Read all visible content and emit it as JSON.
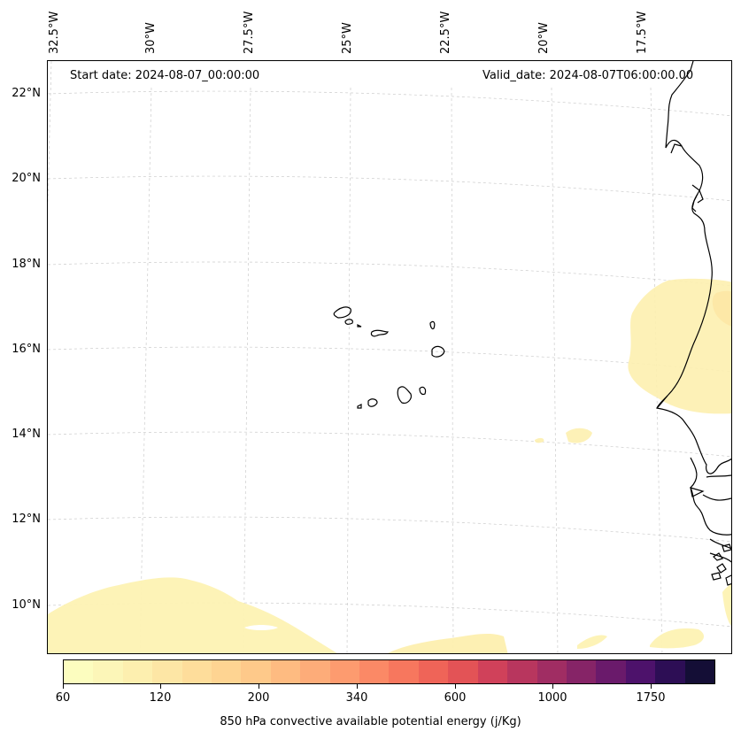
{
  "map": {
    "start_date": "Start date: 2024-08-07_00:00:00",
    "valid_date": "Valid_date: 2024-08-07T06:00:00.00",
    "longitude_labels": [
      "32.5°W",
      "30°W",
      "27.5°W",
      "25°W",
      "22.5°W",
      "20°W",
      "17.5°W"
    ],
    "latitude_labels": [
      "22°N",
      "20°N",
      "18°N",
      "16°N",
      "14°N",
      "12°N",
      "10°N"
    ],
    "field": "850 hPa convective available potential energy",
    "colormap": "magma_r",
    "coastline_color": "#000000",
    "gridline_color": "#cccccc"
  },
  "colorbar": {
    "title": "850 hPa convective available potential energy (j/Kg)",
    "tick_labels": [
      "60",
      "120",
      "200",
      "340",
      "600",
      "1000",
      "1750"
    ],
    "colors": [
      "#fcfdbf",
      "#fcf6b8",
      "#fdefaf",
      "#fde6a5",
      "#fedd9b",
      "#fed492",
      "#fec98a",
      "#febb81",
      "#fdac79",
      "#fd9b6f",
      "#fb8966",
      "#f7775e",
      "#ef6458",
      "#e35356",
      "#d0415a",
      "#b8365e",
      "#a02d63",
      "#862467",
      "#6a1a6b",
      "#4d126b",
      "#2d0e55",
      "#140e36"
    ]
  }
}
